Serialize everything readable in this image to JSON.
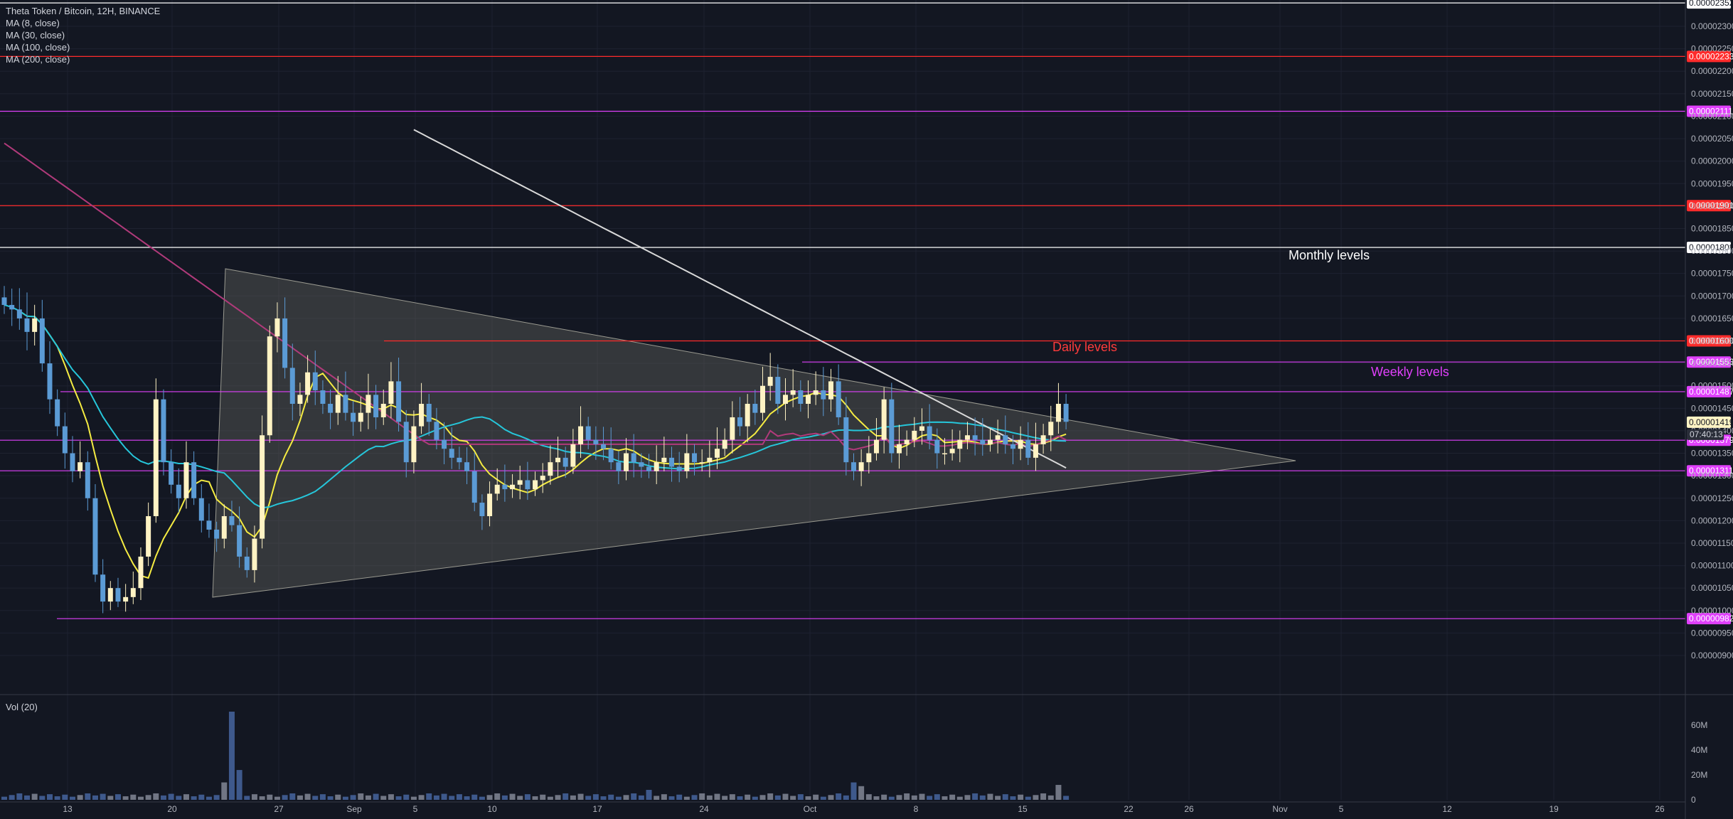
{
  "header": {
    "symbol_line": "Theta Token / Bitcoin, 12H, BINANCE",
    "indicators": [
      "MA (8, close)",
      "MA (30, close)",
      "MA (100, close)",
      "MA (200, close)"
    ],
    "volume_label": "Vol (20)"
  },
  "annotations": {
    "monthly": "Monthly levels",
    "daily": "Daily levels",
    "weekly": "Weekly levels"
  },
  "colors": {
    "background": "#131722",
    "grid": "#1e2230",
    "candle_up": "#fff3c4",
    "candle_down": "#5b9bd5",
    "ma8": "#f5ec42",
    "ma30": "#26c6da",
    "ma100": "#b03a7a",
    "ma200": "#d9d9d9",
    "monthly": "#ffffff",
    "daily": "#ff2b2b",
    "weekly": "#e040fb",
    "triangle_fill": "#6d6d64"
  },
  "chart_data": {
    "type": "candlestick",
    "price_axis": {
      "ylim": [
        8.8e-06,
        2.37e-05
      ],
      "ticks": [
        "0.00002300",
        "0.00002250",
        "0.00002200",
        "0.00002150",
        "0.00002100",
        "0.00002050",
        "0.00002000",
        "0.00001950",
        "0.00001900",
        "0.00001850",
        "0.00001800",
        "0.00001750",
        "0.00001700",
        "0.00001650",
        "0.00001600",
        "0.00001550",
        "0.00001500",
        "0.00001450",
        "0.00001400",
        "0.00001350",
        "0.00001300",
        "0.00001250",
        "0.00001200",
        "0.00001150",
        "0.00001100",
        "0.00001050",
        "0.00001000",
        "0.00000950",
        "0.00000900"
      ],
      "current_price": "0.00001419",
      "countdown": "07:40:13"
    },
    "time_axis": {
      "labels": [
        "13",
        "20",
        "27",
        "Sep",
        "5",
        "10",
        "17",
        "24",
        "Oct",
        "8",
        "15",
        "22",
        "26",
        "Nov",
        "5",
        "12",
        "19",
        "26"
      ]
    },
    "volume_axis": {
      "ticks": [
        "60M",
        "40M",
        "20M",
        "0"
      ]
    },
    "levels": [
      {
        "value": 2.352e-05,
        "label": "0.00002352",
        "kind": "monthly"
      },
      {
        "value": 2.233e-05,
        "label": "0.00002233",
        "kind": "daily"
      },
      {
        "value": 2.111e-05,
        "label": "0.00002111",
        "kind": "weekly"
      },
      {
        "value": 1.901e-05,
        "label": "0.00001901",
        "kind": "daily"
      },
      {
        "value": 1.808e-05,
        "label": "0.00001808",
        "kind": "monthly"
      },
      {
        "value": 1.6e-05,
        "label": "0.00001600",
        "kind": "daily"
      },
      {
        "value": 1.553e-05,
        "label": "0.00001553",
        "kind": "weekly"
      },
      {
        "value": 1.487e-05,
        "label": "0.00001487",
        "kind": "weekly"
      },
      {
        "value": 1.379e-05,
        "label": "0.00001379",
        "kind": "weekly"
      },
      {
        "value": 1.311e-05,
        "label": "0.00001311",
        "kind": "weekly"
      },
      {
        "value": 9.82e-06,
        "label": "0.00000982",
        "kind": "weekly"
      }
    ],
    "candles_close": [
      1.68e-05,
      1.67e-05,
      1.65e-05,
      1.62e-05,
      1.65e-05,
      1.55e-05,
      1.47e-05,
      1.41e-05,
      1.35e-05,
      1.31e-05,
      1.33e-05,
      1.25e-05,
      1.08e-05,
      1.02e-05,
      1.05e-05,
      1.02e-05,
      1.03e-05,
      1.05e-05,
      1.12e-05,
      1.21e-05,
      1.47e-05,
      1.33e-05,
      1.28e-05,
      1.25e-05,
      1.33e-05,
      1.25e-05,
      1.2e-05,
      1.18e-05,
      1.16e-05,
      1.21e-05,
      1.19e-05,
      1.12e-05,
      1.09e-05,
      1.16e-05,
      1.39e-05,
      1.61e-05,
      1.65e-05,
      1.54e-05,
      1.46e-05,
      1.48e-05,
      1.53e-05,
      1.49e-05,
      1.46e-05,
      1.44e-05,
      1.48e-05,
      1.44e-05,
      1.42e-05,
      1.44e-05,
      1.48e-05,
      1.43e-05,
      1.46e-05,
      1.51e-05,
      1.42e-05,
      1.33e-05,
      1.41e-05,
      1.46e-05,
      1.42e-05,
      1.38e-05,
      1.36e-05,
      1.34e-05,
      1.33e-05,
      1.31e-05,
      1.24e-05,
      1.21e-05,
      1.26e-05,
      1.28e-05,
      1.27e-05,
      1.28e-05,
      1.29e-05,
      1.27e-05,
      1.29e-05,
      1.3e-05,
      1.33e-05,
      1.34e-05,
      1.32e-05,
      1.37e-05,
      1.41e-05,
      1.38e-05,
      1.37e-05,
      1.36e-05,
      1.33e-05,
      1.31e-05,
      1.35e-05,
      1.33e-05,
      1.32e-05,
      1.31e-05,
      1.33e-05,
      1.34e-05,
      1.32e-05,
      1.31e-05,
      1.35e-05,
      1.33e-05,
      1.33e-05,
      1.34e-05,
      1.36e-05,
      1.38e-05,
      1.43e-05,
      1.41e-05,
      1.46e-05,
      1.44e-05,
      1.5e-05,
      1.52e-05,
      1.46e-05,
      1.48e-05,
      1.49e-05,
      1.46e-05,
      1.48e-05,
      1.49e-05,
      1.47e-05,
      1.51e-05,
      1.43e-05,
      1.33e-05,
      1.31e-05,
      1.33e-05,
      1.35e-05,
      1.38e-05,
      1.47e-05,
      1.35e-05,
      1.37e-05,
      1.38e-05,
      1.4e-05,
      1.41e-05,
      1.38e-05,
      1.35e-05,
      1.35e-05,
      1.36e-05,
      1.38e-05,
      1.39e-05,
      1.38e-05,
      1.37e-05,
      1.38e-05,
      1.39e-05,
      1.37e-05,
      1.36e-05,
      1.38e-05,
      1.34e-05,
      1.37e-05,
      1.39e-05,
      1.42e-05,
      1.46e-05,
      1.42e-05
    ],
    "volume_peak": "about 71M near Aug 23"
  }
}
